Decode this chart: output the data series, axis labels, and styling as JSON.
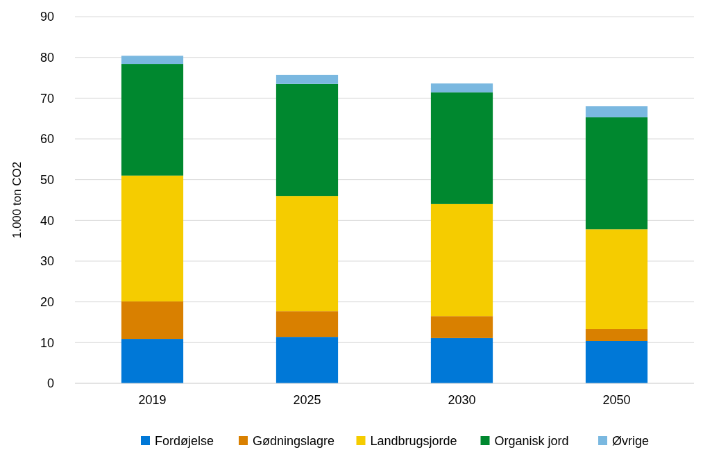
{
  "chart_data": {
    "type": "bar",
    "stacked": true,
    "ylabel": "1.000 ton CO2",
    "categories": [
      "2019",
      "2025",
      "2030",
      "2050"
    ],
    "series": [
      {
        "name": "Fordøjelse",
        "color": "#0078d7",
        "values": [
          10.9,
          11.4,
          11.1,
          10.4
        ]
      },
      {
        "name": "Gødningslagre",
        "color": "#d98000",
        "values": [
          9.2,
          6.3,
          5.4,
          2.9
        ]
      },
      {
        "name": "Landbrugsjorde",
        "color": "#f5cc00",
        "values": [
          30.9,
          28.3,
          27.5,
          24.5
        ]
      },
      {
        "name": "Organisk jord",
        "color": "#00882f",
        "values": [
          27.4,
          27.5,
          27.4,
          27.5
        ]
      },
      {
        "name": "Øvrige",
        "color": "#7ab8e0",
        "values": [
          2.0,
          2.2,
          2.2,
          2.7
        ]
      }
    ],
    "ylim": [
      0,
      90
    ],
    "yticks": [
      0,
      10,
      20,
      30,
      40,
      50,
      60,
      70,
      80,
      90
    ],
    "grid": "y",
    "legend": "bottom"
  }
}
